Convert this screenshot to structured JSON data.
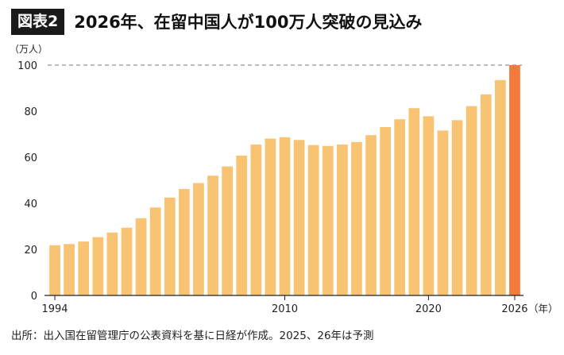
{
  "header": {
    "badge": "図表2",
    "title": "2026年、在留中国人が100万人突破の見込み"
  },
  "source": "出所：出入国在留管理庁の公表資料を基に日経が作成。2025、26年は予測",
  "colors": {
    "bar": "#f8c373",
    "highlight": "#f47a3c",
    "axis": "#222222",
    "dashed": "#777777"
  },
  "chart_data": {
    "type": "bar",
    "title": "2026年、在留中国人が100万人突破の見込み",
    "ylabel": "（万人）",
    "xlabel": "（年）",
    "ylim": [
      0,
      100
    ],
    "yticks": [
      0,
      20,
      40,
      60,
      80,
      100
    ],
    "xtick_labels": [
      {
        "year": 1994,
        "label": "1994"
      },
      {
        "year": 2010,
        "label": "2010"
      },
      {
        "year": 2020,
        "label": "2020"
      },
      {
        "year": 2026,
        "label": "2026"
      }
    ],
    "reference_line": 100,
    "highlight_year": 2026,
    "categories": [
      1994,
      1995,
      1996,
      1997,
      1998,
      1999,
      2000,
      2001,
      2002,
      2003,
      2004,
      2005,
      2006,
      2007,
      2008,
      2009,
      2010,
      2011,
      2012,
      2013,
      2014,
      2015,
      2016,
      2017,
      2018,
      2019,
      2020,
      2021,
      2022,
      2023,
      2024,
      2025,
      2026
    ],
    "values": [
      21.8,
      22.3,
      23.4,
      25.3,
      27.3,
      29.4,
      33.5,
      38.2,
      42.5,
      46.2,
      48.8,
      52.0,
      56.0,
      60.7,
      65.5,
      68.1,
      68.7,
      67.5,
      65.3,
      64.9,
      65.5,
      66.6,
      69.6,
      73.1,
      76.5,
      81.3,
      77.8,
      71.6,
      76.1,
      82.2,
      87.3,
      93.5,
      100.0
    ]
  }
}
